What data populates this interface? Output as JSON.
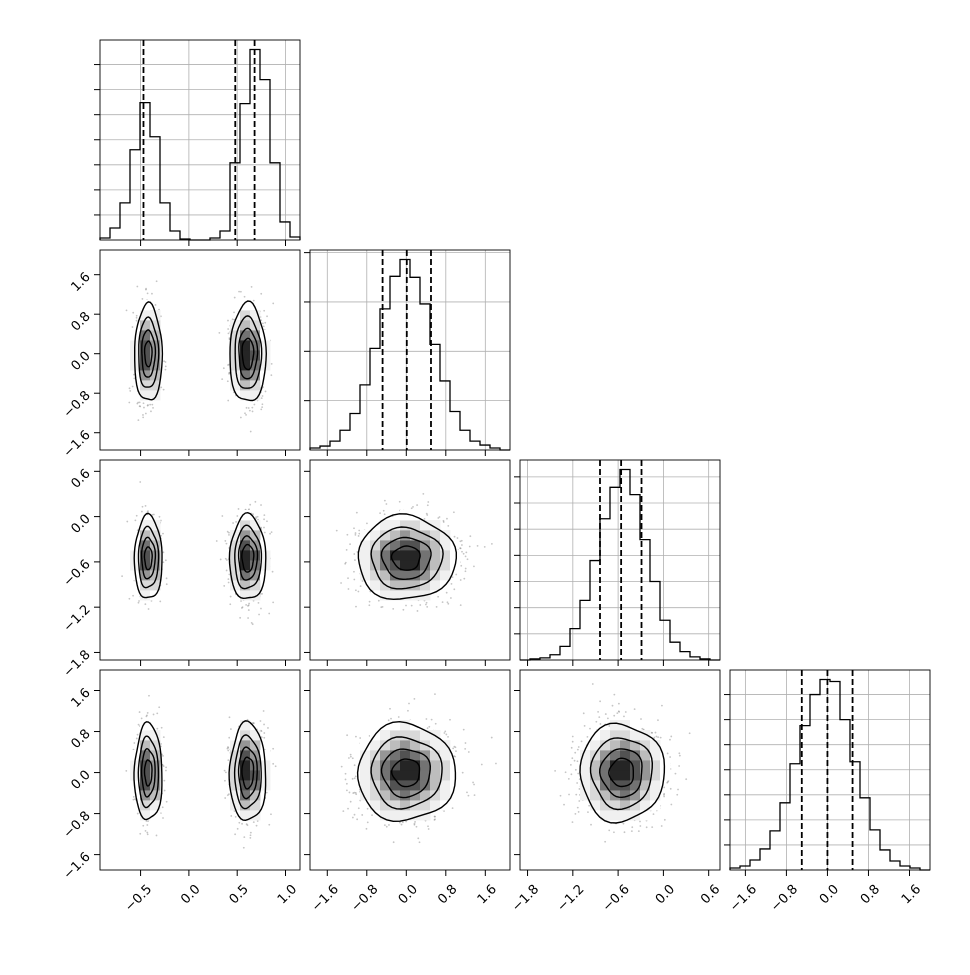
{
  "chart_data": {
    "type": "corner",
    "title": "",
    "parameters": [
      {
        "ticks": [
          -0.5,
          0.0,
          0.5,
          1.0
        ],
        "tick_labels": [
          "−0.5",
          "0.0",
          "0.5",
          "1.0"
        ],
        "range": [
          -0.92,
          1.15
        ],
        "histogram": {
          "bin_edges": [
            -0.92,
            -0.8165,
            -0.713,
            -0.6095,
            -0.506,
            -0.4025,
            -0.299,
            -0.1955,
            -0.092,
            0.0115,
            0.115,
            0.2185,
            0.322,
            0.4255,
            0.529,
            0.6325,
            0.736,
            0.8395,
            0.943,
            1.0465,
            1.15
          ],
          "counts": [
            2,
            12,
            37,
            90,
            137,
            103,
            37,
            9,
            1,
            0,
            0,
            2,
            9,
            77,
            136,
            190,
            160,
            77,
            18,
            3
          ]
        },
        "quantiles": [
          -0.47,
          0.48,
          0.68
        ],
        "modes": [
          {
            "center": -0.42,
            "spread": 0.07,
            "weight": 0.42
          },
          {
            "center": 0.61,
            "spread": 0.09,
            "weight": 0.58
          }
        ]
      },
      {
        "ticks": [
          -1.6,
          -0.8,
          0.0,
          0.8,
          1.6
        ],
        "tick_labels": [
          "−1.6",
          "−0.8",
          "0.0",
          "0.8",
          "1.6"
        ],
        "range": [
          -1.95,
          2.1
        ],
        "histogram": {
          "bin_edges": [
            -1.95,
            -1.7475,
            -1.545,
            -1.3425,
            -1.14,
            -0.9375,
            -0.735,
            -0.5325,
            -0.33,
            -0.1275,
            0.075,
            0.2775,
            0.48,
            0.6825,
            0.885,
            1.0875,
            1.29,
            1.4925,
            1.695,
            1.8975,
            2.1
          ],
          "counts": [
            2,
            4,
            9,
            20,
            37,
            66,
            103,
            143,
            176,
            193,
            175,
            148,
            107,
            70,
            39,
            20,
            9,
            5,
            2,
            0
          ]
        },
        "quantiles": [
          -0.48,
          0.01,
          0.5
        ],
        "modes": [
          {
            "center": 0.0,
            "spread": 0.48,
            "weight": 1
          }
        ]
      },
      {
        "ticks": [
          -1.8,
          -1.2,
          -0.6,
          0.0,
          0.6
        ],
        "tick_labels": [
          "−1.8",
          "−1.2",
          "−0.6",
          "0.0",
          "0.6"
        ],
        "range": [
          -1.9,
          0.75
        ],
        "histogram": {
          "bin_edges": [
            -1.9,
            -1.7675,
            -1.635,
            -1.5025,
            -1.37,
            -1.2375,
            -1.105,
            -0.9725,
            -0.84,
            -0.7075,
            -0.575,
            -0.4425,
            -0.31,
            -0.1775,
            -0.045,
            0.0875,
            0.22,
            0.3525,
            0.485,
            0.6175,
            0.75
          ],
          "counts": [
            0,
            1,
            2,
            5,
            13,
            30,
            57,
            95,
            135,
            165,
            182,
            158,
            115,
            75,
            38,
            17,
            8,
            3,
            1,
            0
          ]
        },
        "quantiles": [
          -0.84,
          -0.56,
          -0.29
        ],
        "modes": [
          {
            "center": -0.55,
            "spread": 0.27,
            "weight": 1
          }
        ]
      },
      {
        "ticks": [
          -1.6,
          -0.8,
          0.0,
          0.8,
          1.6
        ],
        "tick_labels": [
          "−1.6",
          "−0.8",
          "0.0",
          "0.8",
          "1.6"
        ],
        "range": [
          -1.9,
          2.0
        ],
        "histogram": {
          "bin_edges": [
            -1.9,
            -1.705,
            -1.51,
            -1.315,
            -1.12,
            -0.925,
            -0.73,
            -0.535,
            -0.34,
            -0.145,
            0.05,
            0.245,
            0.44,
            0.635,
            0.83,
            1.025,
            1.22,
            1.415,
            1.61,
            1.805,
            2.0
          ],
          "counts": [
            2,
            4,
            10,
            21,
            39,
            67,
            106,
            144,
            175,
            190,
            188,
            150,
            108,
            72,
            40,
            20,
            9,
            4,
            2,
            0
          ]
        },
        "quantiles": [
          -0.5,
          0.0,
          0.49
        ],
        "modes": [
          {
            "center": 0.0,
            "spread": 0.46,
            "weight": 1
          }
        ]
      }
    ],
    "contour_levels": [
      "10%",
      "40%",
      "65%",
      "86%"
    ],
    "colors": {
      "line": "#000000",
      "grid": "#b0b0b0",
      "points": "#7f7f7f",
      "density_ramp": [
        "#ffffff",
        "#f0f0f0",
        "#d9d9d9",
        "#bdbdbd",
        "#969696",
        "#737373",
        "#525252",
        "#252525"
      ]
    },
    "grid": true,
    "legend": "none",
    "xlabel": "",
    "ylabel": ""
  }
}
